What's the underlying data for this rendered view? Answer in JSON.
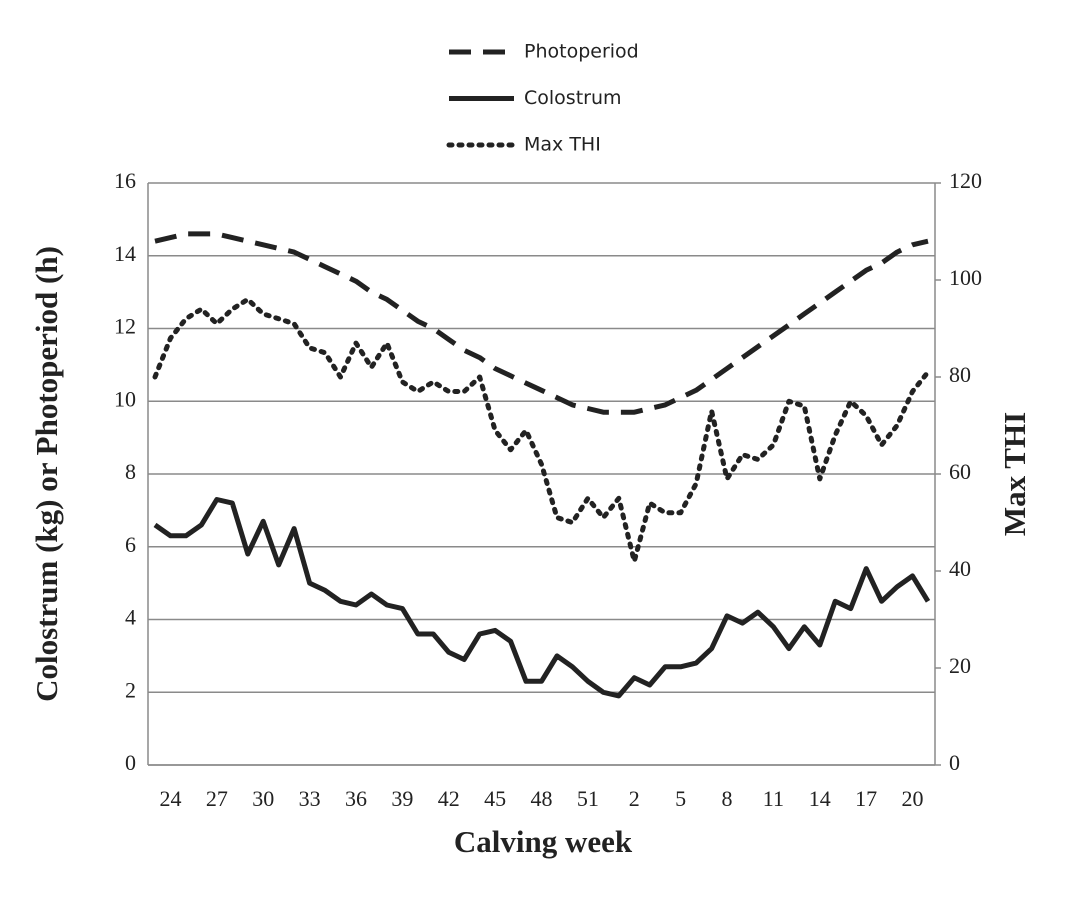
{
  "chart_data": {
    "type": "line",
    "x_label": "Calving week",
    "y_label": "Colostrum (kg) or Photoperiod (h)",
    "y2_label": "Max THI",
    "categories": [
      null,
      "24",
      null,
      null,
      "27",
      null,
      null,
      "30",
      null,
      null,
      "33",
      null,
      null,
      "36",
      null,
      null,
      "39",
      null,
      null,
      "42",
      null,
      null,
      "45",
      null,
      null,
      "48",
      null,
      null,
      "51",
      null,
      null,
      "2",
      null,
      null,
      "5",
      null,
      null,
      "8",
      null,
      null,
      "11",
      null,
      null,
      "14",
      null,
      null,
      "17",
      null,
      null,
      "20",
      null
    ],
    "series": [
      {
        "name": "Photoperiod",
        "color": "#222222",
        "style": "dashed",
        "axis": "y",
        "values": [
          14.4,
          14.5,
          14.6,
          14.6,
          14.6,
          14.5,
          14.4,
          14.3,
          14.2,
          14.1,
          13.9,
          13.7,
          13.5,
          13.3,
          13.0,
          12.8,
          12.5,
          12.2,
          12.0,
          11.7,
          11.4,
          11.2,
          10.9,
          10.7,
          10.5,
          10.3,
          10.1,
          9.9,
          9.8,
          9.7,
          9.7,
          9.7,
          9.8,
          9.9,
          10.1,
          10.3,
          10.6,
          10.9,
          11.2,
          11.5,
          11.8,
          12.1,
          12.4,
          12.7,
          13.0,
          13.3,
          13.6,
          13.8,
          14.1,
          14.3,
          14.4
        ]
      },
      {
        "name": "Colostrum",
        "color": "#222222",
        "style": "solid",
        "axis": "y",
        "values": [
          6.6,
          6.3,
          6.3,
          6.6,
          7.3,
          7.2,
          5.8,
          6.7,
          5.5,
          6.5,
          5.0,
          4.8,
          4.5,
          4.4,
          4.7,
          4.4,
          4.3,
          3.6,
          3.6,
          3.1,
          2.9,
          3.6,
          3.7,
          3.4,
          2.3,
          2.3,
          3.0,
          2.7,
          2.3,
          2.0,
          1.9,
          2.4,
          2.2,
          2.7,
          2.7,
          2.8,
          3.2,
          4.1,
          3.9,
          4.2,
          3.8,
          3.2,
          3.8,
          3.3,
          4.5,
          4.3,
          5.4,
          4.5,
          4.9,
          5.2,
          4.5
        ]
      },
      {
        "name": "Max THI",
        "color": "#222222",
        "style": "dotted",
        "axis": "y2",
        "values": [
          80,
          88,
          92,
          94,
          91,
          94,
          96,
          93,
          92,
          91,
          86,
          85,
          80,
          87,
          82,
          87,
          79,
          77,
          79,
          77,
          77,
          80,
          69,
          65,
          69,
          62,
          51,
          50,
          55,
          51,
          55,
          42,
          54,
          52,
          52,
          58,
          73,
          59,
          64,
          63,
          66,
          75,
          74,
          59,
          68,
          75,
          72,
          66,
          70,
          77,
          81
        ]
      }
    ],
    "ylim": [
      0,
      16
    ],
    "yticks": [
      0,
      2,
      4,
      6,
      8,
      10,
      12,
      14,
      16
    ],
    "y2lim": [
      0,
      120
    ],
    "y2ticks": [
      0,
      20,
      40,
      60,
      80,
      100,
      120
    ],
    "grid": true,
    "legend": "top"
  }
}
